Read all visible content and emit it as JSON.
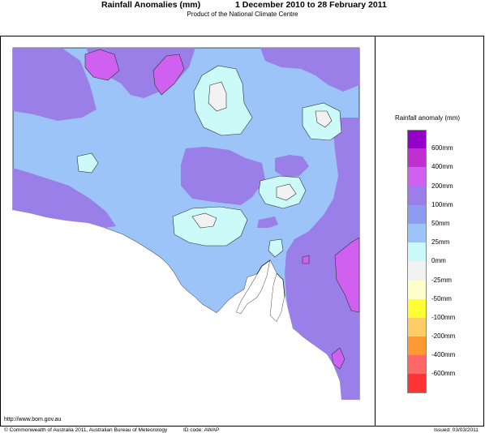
{
  "header": {
    "title": "Rainfall Anomalies (mm)",
    "period": "1 December 2010 to 28 February 2011",
    "subtitle": "Product of the National Climate Centre"
  },
  "legend": {
    "title": "Rainfall anomaly (mm)",
    "items": [
      {
        "label": "",
        "color": "#9400c8"
      },
      {
        "label": "600mm",
        "color": "#c030d0"
      },
      {
        "label": "400mm",
        "color": "#d060f0"
      },
      {
        "label": "200mm",
        "color": "#9b7fe8"
      },
      {
        "label": "100mm",
        "color": "#8c9cf0"
      },
      {
        "label": "50mm",
        "color": "#9cc4f8"
      },
      {
        "label": "25mm",
        "color": "#ccfaf8"
      },
      {
        "label": "0mm",
        "color": "#f2f2f2"
      },
      {
        "label": "-25mm",
        "color": "#ffffcc"
      },
      {
        "label": "-50mm",
        "color": "#ffff33"
      },
      {
        "label": "-100mm",
        "color": "#ffcc66"
      },
      {
        "label": "-200mm",
        "color": "#ff9933"
      },
      {
        "label": "-400mm",
        "color": "#ff6666"
      },
      {
        "label": "-600mm",
        "color": "#ff3333"
      }
    ]
  },
  "map_colors": {
    "purple": "#9b7fe8",
    "blue": "#8c9cf0",
    "light_blue": "#9cc4f8",
    "cyan": "#ccfaf8",
    "magenta": "#d060f0",
    "grey": "#f2f2f2",
    "sea": "#ffffff"
  },
  "footer": {
    "url": "http://www.bom.gov.au",
    "copyright": "© Commonwealth of Australia 2011, Australian Bureau of Meteorology",
    "id_code": "ID code: AWAP",
    "issued": "Issued: 03/03/2011"
  }
}
